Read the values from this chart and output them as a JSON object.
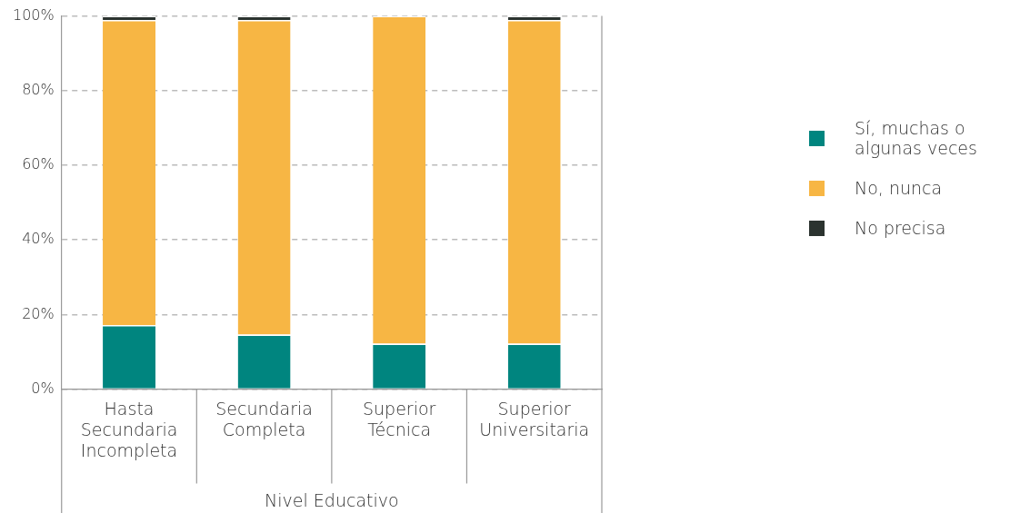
{
  "chart_data": {
    "type": "bar",
    "stacked": true,
    "xlabel": "Nivel Educativo",
    "categories": [
      "Hasta Secundaria Incompleta",
      "Secundaria Completa",
      "Superior Técnica",
      "Superior Universitaria"
    ],
    "series": [
      {
        "name": "Sí, muchas o algunas veces",
        "color": "#00857f",
        "values": [
          17.2,
          14.6,
          12.2,
          12.2
        ]
      },
      {
        "name": "No, nunca",
        "color": "#f7b644",
        "values": [
          81.7,
          84.3,
          87.8,
          86.7
        ]
      },
      {
        "name": "No precisa",
        "color": "#2b332f",
        "values": [
          1.1,
          1.1,
          0,
          1.1
        ]
      }
    ],
    "ylim": [
      0,
      100
    ],
    "yticks": [
      {
        "value": 0,
        "label": "0%"
      },
      {
        "value": 20,
        "label": "20%"
      },
      {
        "value": 40,
        "label": "40%"
      },
      {
        "value": 60,
        "label": "60%"
      },
      {
        "value": 80,
        "label": "80%"
      },
      {
        "value": 100,
        "label": "100%"
      }
    ],
    "grid": "y",
    "legend": "right"
  }
}
